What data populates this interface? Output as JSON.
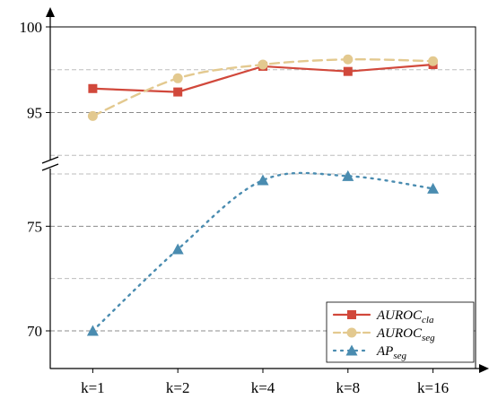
{
  "chart_data": {
    "type": "line",
    "categories": [
      "k=1",
      "k=2",
      "k=4",
      "k=8",
      "k=16"
    ],
    "broken_y_axis": true,
    "y_segments": [
      {
        "range": [
          92.2,
          100
        ],
        "ticks": [
          95,
          100
        ]
      },
      {
        "range": [
          68.2,
          77.8
        ],
        "ticks": [
          70,
          75
        ]
      }
    ],
    "grid": "horizontal dashed",
    "legend_position": "bottom-right",
    "series": [
      {
        "name": "AUROC",
        "subscript": "cla",
        "color": "#d1483b",
        "line_style": "solid",
        "marker": "square",
        "segment": 0,
        "values": [
          96.4,
          96.2,
          97.7,
          97.4,
          97.8
        ]
      },
      {
        "name": "AUROC",
        "subscript": "seg",
        "color": "#e3c98f",
        "line_style": "dashed",
        "marker": "circle",
        "segment": 0,
        "values": [
          94.8,
          97.0,
          97.8,
          98.1,
          98.0
        ]
      },
      {
        "name": "AP",
        "subscript": "seg",
        "color": "#4a8cb0",
        "line_style": "dotted",
        "marker": "triangle",
        "segment": 1,
        "values": [
          70.0,
          73.9,
          77.2,
          77.4,
          76.8
        ]
      }
    ]
  }
}
